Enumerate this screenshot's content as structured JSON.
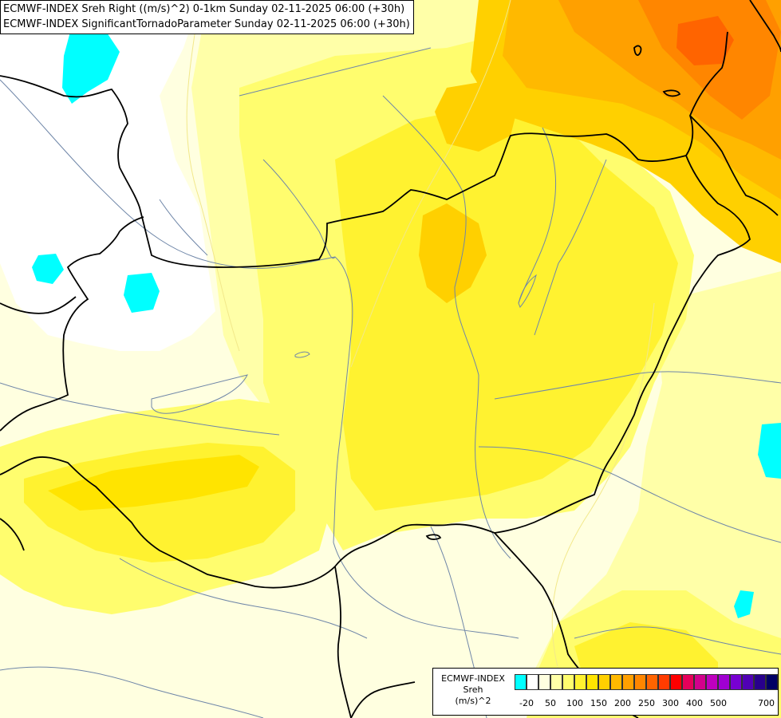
{
  "title": {
    "line1": "ECMWF-INDEX Sreh Right ((m/s)^2) 0-1km Sunday 02-11-2025 06:00 (+30h)",
    "line2": "ECMWF-INDEX SignificantTornadoParameter Sunday 02-11-2025 06:00 (+30h)"
  },
  "legend": {
    "title_lines": [
      "ECMWF-INDEX",
      "Sreh",
      "(m/s)^2"
    ],
    "colors": [
      "#00ffff",
      "#ffffff",
      "#ffffe0",
      "#ffffa8",
      "#fffd6e",
      "#fff230",
      "#ffe400",
      "#ffd000",
      "#ffb900",
      "#ffa000",
      "#ff8600",
      "#ff6400",
      "#ff3c00",
      "#ff0000",
      "#e6005a",
      "#d2008c",
      "#be00be",
      "#a000d2",
      "#7800d2",
      "#5000b4",
      "#28008c",
      "#000064"
    ],
    "ticks": [
      "-20",
      "50",
      "100",
      "150",
      "200",
      "250",
      "300",
      "400",
      "500",
      "700"
    ]
  },
  "map_colors": {
    "white": "#ffffff",
    "pale": "#ffffe0",
    "light": "#ffffa8",
    "yellow1": "#fffd6e",
    "yellow2": "#fff230",
    "gold": "#ffe400",
    "amber": "#ffd000",
    "orange1": "#ffb900",
    "orange2": "#ffa000",
    "orange3": "#ff8600",
    "red_orange": "#ff6400",
    "cyan": "#00ffff"
  }
}
